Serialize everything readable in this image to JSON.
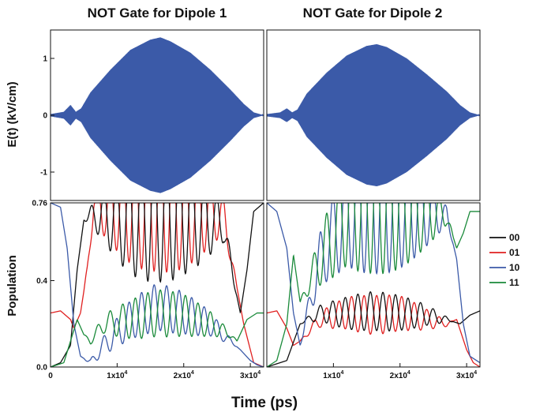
{
  "chart_data": [
    {
      "type": "line",
      "title": "NOT Gate for Dipole 1",
      "ylabel": "E(t) (kV/cm)",
      "xlim": [
        0,
        32000
      ],
      "ylim": [
        -1.5,
        1.5
      ],
      "yticks": [
        {
          "value": 1,
          "label": "1"
        },
        {
          "value": 0,
          "label": "0"
        },
        {
          "value": -1,
          "label": "-1"
        }
      ],
      "series": [
        {
          "color": "#3b5aa8",
          "envelope": {
            "x": [
              0,
              2000,
              3000,
              3800,
              4600,
              6000,
              9000,
              12000,
              15000,
              16500,
              18000,
              21000,
              24000,
              27000,
              29000,
              30500,
              32000
            ],
            "y": [
              0.02,
              0.06,
              0.18,
              0.06,
              0.12,
              0.4,
              0.8,
              1.15,
              1.33,
              1.37,
              1.3,
              1.1,
              0.8,
              0.45,
              0.2,
              0.05,
              0.0
            ]
          }
        }
      ]
    },
    {
      "type": "line",
      "title": "NOT Gate for Dipole 2",
      "ylabel": "",
      "xlim": [
        0,
        32000
      ],
      "ylim": [
        -1.5,
        1.5
      ],
      "yticks": [],
      "series": [
        {
          "color": "#3b5aa8",
          "envelope": {
            "x": [
              0,
              2000,
              3000,
              3800,
              4600,
              6000,
              9000,
              12000,
              15000,
              16500,
              18000,
              21000,
              24000,
              27000,
              29000,
              30500,
              32000
            ],
            "y": [
              0.02,
              0.05,
              0.12,
              0.05,
              0.1,
              0.38,
              0.75,
              1.05,
              1.22,
              1.25,
              1.2,
              1.0,
              0.72,
              0.42,
              0.18,
              0.05,
              0.0
            ]
          }
        }
      ]
    },
    {
      "type": "line",
      "title": "",
      "ylabel": "Population",
      "xlabel": "Time (ps)",
      "xlim": [
        0,
        32000
      ],
      "ylim": [
        0,
        0.76
      ],
      "yticks": [
        {
          "value": 0.76,
          "label": "0.76"
        },
        {
          "value": 0.4,
          "label": "0.4"
        },
        {
          "value": 0.0,
          "label": "0.0"
        }
      ],
      "xticks": [
        {
          "value": 0,
          "base": "0",
          "exp": ""
        },
        {
          "value": 10000,
          "base": "1x10",
          "exp": "4"
        },
        {
          "value": 20000,
          "base": "2x10",
          "exp": "4"
        },
        {
          "value": 30000,
          "base": "3x10",
          "exp": "4"
        }
      ],
      "series": [
        {
          "name": "00",
          "color": "#111111",
          "x": [
            0,
            1500,
            3000,
            4000,
            5000,
            6000,
            8000,
            12000,
            16000,
            20000,
            24000,
            26000,
            27500,
            28500,
            29500,
            30500,
            32000
          ],
          "y": [
            0.0,
            0.02,
            0.1,
            0.45,
            0.68,
            0.7,
            0.7,
            0.68,
            0.7,
            0.7,
            0.68,
            0.66,
            0.4,
            0.25,
            0.45,
            0.72,
            0.76
          ]
        },
        {
          "name": "01",
          "color": "#e02020",
          "x": [
            0,
            1500,
            3000,
            3500,
            4500,
            5500,
            6500,
            8000,
            12000,
            16000,
            20000,
            24000,
            26000,
            27500,
            29000,
            30500,
            32000
          ],
          "y": [
            0.25,
            0.26,
            0.22,
            0.18,
            0.25,
            0.45,
            0.76,
            0.73,
            0.73,
            0.75,
            0.73,
            0.72,
            0.7,
            0.45,
            0.2,
            0.02,
            0.0
          ]
        },
        {
          "name": "10",
          "color": "#3b5aa8",
          "x": [
            0,
            1500,
            2500,
            3500,
            4500,
            6000,
            8000,
            12000,
            16000,
            20000,
            24000,
            27000,
            28500,
            30000,
            31000,
            32000
          ],
          "y": [
            0.76,
            0.74,
            0.55,
            0.2,
            0.05,
            0.02,
            0.1,
            0.22,
            0.28,
            0.25,
            0.2,
            0.12,
            0.08,
            0.03,
            0.01,
            0.0
          ]
        },
        {
          "name": "11",
          "color": "#1a8a3a",
          "x": [
            0,
            2000,
            3000,
            4000,
            5000,
            6000,
            8000,
            12000,
            16000,
            20000,
            24000,
            27000,
            28000,
            29500,
            31000,
            32000
          ],
          "y": [
            0.0,
            0.02,
            0.12,
            0.22,
            0.15,
            0.12,
            0.2,
            0.22,
            0.25,
            0.24,
            0.2,
            0.15,
            0.12,
            0.22,
            0.25,
            0.25
          ]
        }
      ]
    },
    {
      "type": "line",
      "title": "",
      "ylabel": "",
      "xlabel": "Time (ps)",
      "xlim": [
        0,
        32000
      ],
      "ylim": [
        0,
        0.76
      ],
      "yticks": [],
      "xticks": [
        {
          "value": 10000,
          "base": "1x10",
          "exp": "4"
        },
        {
          "value": 20000,
          "base": "2x10",
          "exp": "4"
        },
        {
          "value": 30000,
          "base": "3x10",
          "exp": "4"
        }
      ],
      "series": [
        {
          "name": "00",
          "color": "#111111",
          "x": [
            0,
            3000,
            5000,
            8000,
            12000,
            16000,
            20000,
            24000,
            27000,
            29000,
            30500,
            32000
          ],
          "y": [
            0.0,
            0.03,
            0.2,
            0.25,
            0.25,
            0.26,
            0.25,
            0.24,
            0.22,
            0.2,
            0.24,
            0.26
          ]
        },
        {
          "name": "01",
          "color": "#e02020",
          "x": [
            0,
            1500,
            3000,
            4000,
            5000,
            8000,
            12000,
            16000,
            20000,
            24000,
            27000,
            28500,
            30000,
            31000,
            32000
          ],
          "y": [
            0.25,
            0.26,
            0.18,
            0.1,
            0.12,
            0.22,
            0.25,
            0.24,
            0.25,
            0.22,
            0.2,
            0.22,
            0.08,
            0.02,
            0.0
          ]
        },
        {
          "name": "10",
          "color": "#3b5aa8",
          "x": [
            0,
            1500,
            3000,
            4000,
            5000,
            8000,
            12000,
            16000,
            20000,
            24000,
            27000,
            28500,
            29500,
            30500,
            32000
          ],
          "y": [
            0.76,
            0.72,
            0.55,
            0.25,
            0.1,
            0.5,
            0.72,
            0.74,
            0.73,
            0.72,
            0.7,
            0.5,
            0.2,
            0.05,
            0.02
          ]
        },
        {
          "name": "11",
          "color": "#1a8a3a",
          "x": [
            0,
            1500,
            3000,
            4000,
            5000,
            8000,
            12000,
            16000,
            20000,
            24000,
            27000,
            28500,
            29500,
            30500,
            32000
          ],
          "y": [
            0.0,
            0.03,
            0.2,
            0.52,
            0.3,
            0.5,
            0.72,
            0.74,
            0.73,
            0.72,
            0.7,
            0.55,
            0.62,
            0.72,
            0.72
          ]
        }
      ]
    }
  ],
  "legend": {
    "placement": "right",
    "entries": [
      {
        "label": "00",
        "color": "#111111"
      },
      {
        "label": "01",
        "color": "#e02020"
      },
      {
        "label": "10",
        "color": "#3b5aa8"
      },
      {
        "label": "11",
        "color": "#1a8a3a"
      }
    ]
  }
}
